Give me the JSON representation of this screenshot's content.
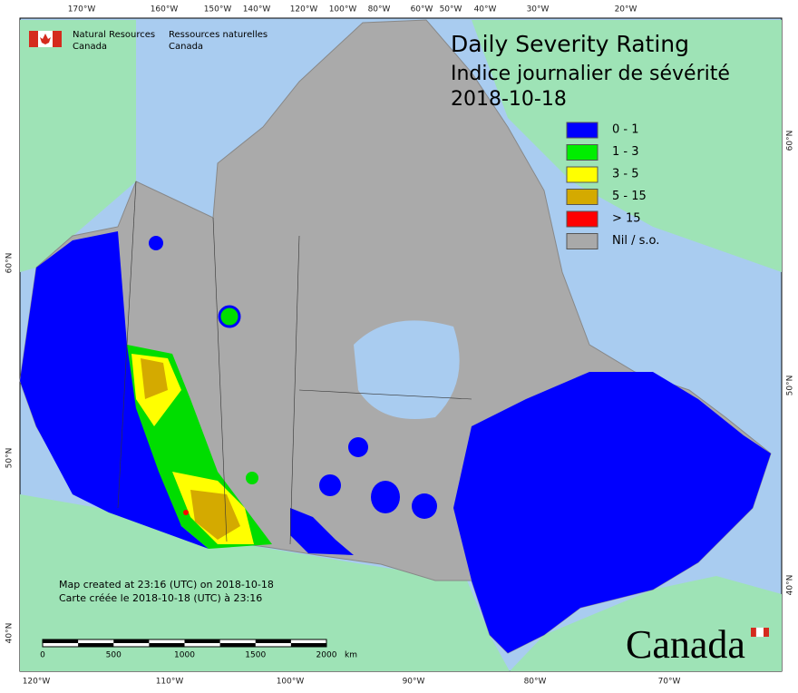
{
  "header": {
    "title": "Daily Severity Rating",
    "title_fr": "Indice journalier de sévérité",
    "date": "2018-10-18"
  },
  "agency": {
    "en": [
      "Natural Resources",
      "Canada"
    ],
    "fr": [
      "Ressources naturelles",
      "Canada"
    ]
  },
  "legend": [
    {
      "label": "0 - 1",
      "color": "#0000ff"
    },
    {
      "label": "1 - 3",
      "color": "#00ee00"
    },
    {
      "label": "3 - 5",
      "color": "#ffff00"
    },
    {
      "label": "5 - 15",
      "color": "#d4aa00"
    },
    {
      "label": "> 15",
      "color": "#ff0000"
    },
    {
      "label": "Nil / s.o.",
      "color": "#a9a9a9"
    }
  ],
  "graticule": {
    "top": [
      "170°W",
      "160°W",
      "150°W",
      "140°W",
      "120°W",
      "100°W",
      "80°W",
      "60°W",
      "50°W",
      "40°W",
      "30°W",
      "20°W"
    ],
    "bottom": [
      "120°W",
      "110°W",
      "100°W",
      "90°W",
      "80°W",
      "70°W"
    ],
    "left": [
      "60°N",
      "50°N",
      "40°N"
    ],
    "right": [
      "60°N",
      "50°N",
      "40°N"
    ]
  },
  "footer": {
    "created_en": "Map created at 23:16 (UTC) on 2018-10-18",
    "created_fr": "Carte créée le 2018-10-18 (UTC) à 23:16"
  },
  "scale": {
    "ticks": [
      "0",
      "500",
      "1000",
      "1500",
      "2000"
    ],
    "unit": "km"
  },
  "wordmark": "Canada"
}
